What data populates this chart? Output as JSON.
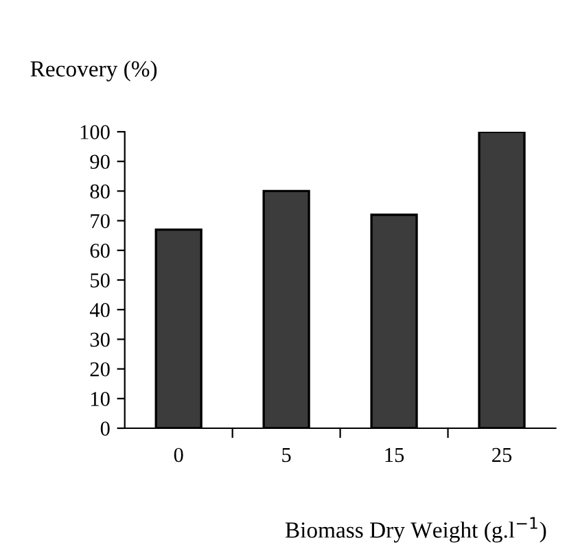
{
  "chart_data": {
    "type": "bar",
    "ylabel": "Recovery (%)",
    "xlabel": "Biomass Dry Weight (g.l$^{−1}$)",
    "categories": [
      "0",
      "5",
      "15",
      "25"
    ],
    "values": [
      67,
      80,
      72,
      100
    ],
    "color": "#3c3c3c",
    "ylim": [
      0,
      100
    ],
    "yticks": [
      0,
      10,
      20,
      30,
      40,
      50,
      60,
      70,
      80,
      90,
      100
    ],
    "grid": false,
    "legend": false
  }
}
